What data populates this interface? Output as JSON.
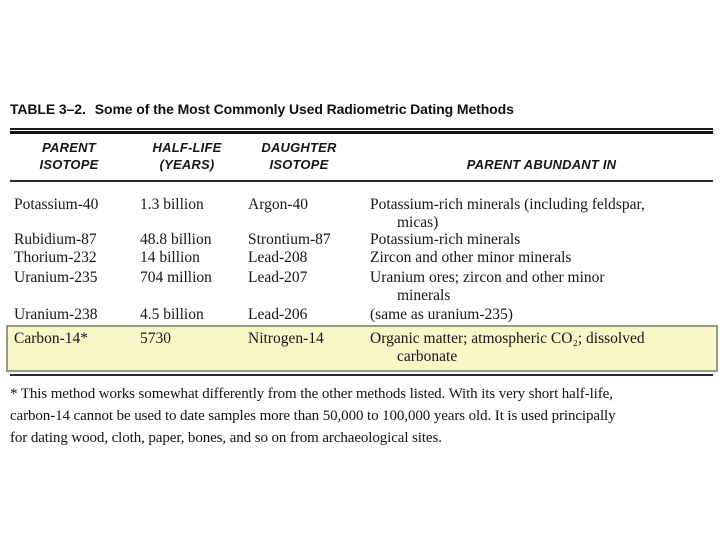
{
  "title": {
    "label": "TABLE 3–2.",
    "text": "Some of the Most Commonly Used Radiometric Dating Methods"
  },
  "table": {
    "headers": [
      {
        "line1": "PARENT",
        "line2": "ISOTOPE"
      },
      {
        "line1": "HALF-LIFE",
        "line2": "(YEARS)"
      },
      {
        "line1": "DAUGHTER",
        "line2": "ISOTOPE"
      },
      {
        "line1": "",
        "line2": "PARENT ABUNDANT IN"
      }
    ],
    "rows": [
      {
        "parent": "Potassium-40",
        "half_life": "1.3 billion",
        "daughter": "Argon-40",
        "abundant": "Potassium-rich minerals (including feldspar,\nmicas)"
      },
      {
        "parent": "Rubidium-87",
        "half_life": "48.8 billion",
        "daughter": "Strontium-87",
        "abundant": "Potassium-rich minerals"
      },
      {
        "parent": "Thorium-232",
        "half_life": "14 billion",
        "daughter": "Lead-208",
        "abundant": "Zircon and other minor minerals"
      },
      {
        "parent": "Uranium-235",
        "half_life": "704 million",
        "daughter": "Lead-207",
        "abundant": "Uranium ores; zircon and other minor\nminerals"
      },
      {
        "parent": "Uranium-238",
        "half_life": "4.5 billion",
        "daughter": "Lead-206",
        "abundant": "(same as uranium-235)"
      },
      {
        "parent": "Carbon-14*",
        "half_life": "5730",
        "daughter": "Nitrogen-14",
        "abundant": "Organic matter; atmospheric CO₂; dissolved\ncarbonate",
        "highlighted": true
      }
    ]
  },
  "footnote": {
    "text": "* This method works somewhat differently from the other methods listed. With its very short half-life,\ncarbon-14 cannot be used to date samples more than 50,000 to 100,000 years old. It is used principally\nfor dating wood, cloth, paper, bones, and so on from archaeological sites."
  },
  "colors": {
    "highlight_bg": "#f9f6c8",
    "highlight_border": "#8c9c85",
    "ink": "#1a1a1a"
  }
}
